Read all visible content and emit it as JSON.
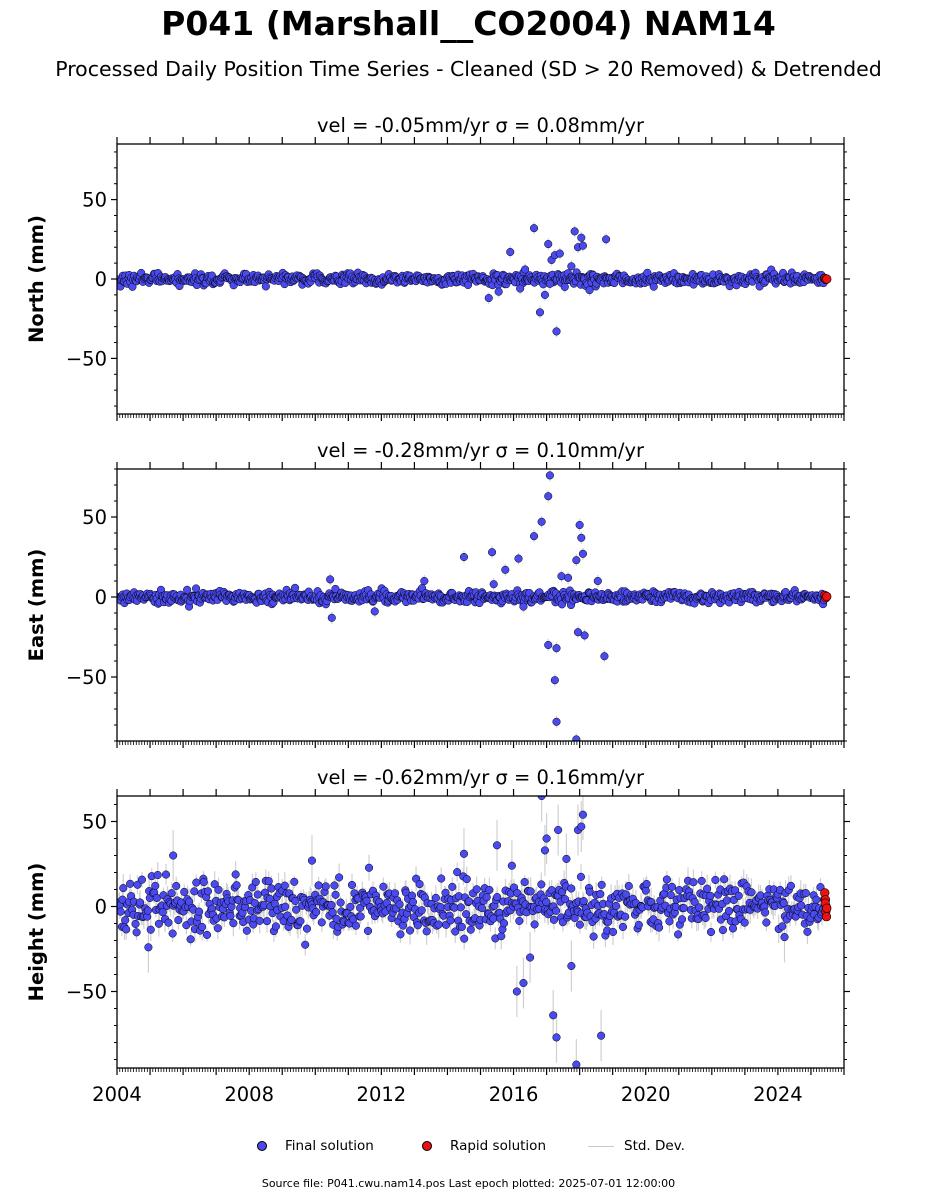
{
  "figure": {
    "title": "P041 (Marshall__CO2004) NAM14",
    "subtitle": "Processed Daily Position Time Series - Cleaned (SD > 20 Removed) & Detrended",
    "source_note": "Source file: P041.cwu.nam14.pos  Last epoch plotted: 2025-07-01 12:00:00"
  },
  "legend": {
    "final_label": "Final solution",
    "rapid_label": "Rapid solution",
    "std_label": "Std. Dev."
  },
  "colors": {
    "final": "#4a4af0",
    "rapid": "#ee1111",
    "std_dev": "#c8c8c8",
    "outline": "#000000"
  },
  "chart_data": [
    {
      "type": "scatter",
      "panel": "north",
      "title": "vel = -0.05mm/yr   σ = 0.08mm/yr",
      "ylabel": "North (mm)",
      "xlim": [
        2004.0,
        2026.0
      ],
      "ylim": [
        -85,
        85
      ],
      "yticks": [
        -50,
        0,
        50
      ],
      "xticks": [
        2004,
        2008,
        2012,
        2016,
        2020,
        2024
      ],
      "noise_mm": 1.8,
      "std_dev_mm": 1.5,
      "outliers": [
        {
          "x": 2015.25,
          "y": -12
        },
        {
          "x": 2015.55,
          "y": -8
        },
        {
          "x": 2015.9,
          "y": 17
        },
        {
          "x": 2016.35,
          "y": 6
        },
        {
          "x": 2016.62,
          "y": 32
        },
        {
          "x": 2016.8,
          "y": -21
        },
        {
          "x": 2016.95,
          "y": -10
        },
        {
          "x": 2017.05,
          "y": 22
        },
        {
          "x": 2017.15,
          "y": 12
        },
        {
          "x": 2017.25,
          "y": 15
        },
        {
          "x": 2017.3,
          "y": -33
        },
        {
          "x": 2017.4,
          "y": 16
        },
        {
          "x": 2017.55,
          "y": -5
        },
        {
          "x": 2017.75,
          "y": 8
        },
        {
          "x": 2017.85,
          "y": 30
        },
        {
          "x": 2017.95,
          "y": 20
        },
        {
          "x": 2018.05,
          "y": 26
        },
        {
          "x": 2018.1,
          "y": 21
        },
        {
          "x": 2018.3,
          "y": -7
        },
        {
          "x": 2018.8,
          "y": 25
        },
        {
          "x": 2017.1,
          "y": -3
        },
        {
          "x": 2016.2,
          "y": -6
        }
      ],
      "rapid_points": [
        {
          "x": 2025.42,
          "y": 0.4
        },
        {
          "x": 2025.45,
          "y": -0.3
        },
        {
          "x": 2025.48,
          "y": 0.0
        }
      ]
    },
    {
      "type": "scatter",
      "panel": "east",
      "title": "vel = -0.28mm/yr   σ = 0.10mm/yr",
      "ylabel": "East (mm)",
      "xlim": [
        2004.0,
        2026.0
      ],
      "ylim": [
        -90,
        80
      ],
      "yticks": [
        -50,
        0,
        50
      ],
      "xticks": [
        2004,
        2008,
        2012,
        2016,
        2020,
        2024
      ],
      "noise_mm": 1.8,
      "std_dev_mm": 1.5,
      "outliers": [
        {
          "x": 2010.45,
          "y": 11
        },
        {
          "x": 2010.5,
          "y": -13
        },
        {
          "x": 2011.8,
          "y": -9
        },
        {
          "x": 2013.3,
          "y": 10
        },
        {
          "x": 2014.5,
          "y": 25
        },
        {
          "x": 2015.35,
          "y": 28
        },
        {
          "x": 2015.4,
          "y": 8
        },
        {
          "x": 2015.75,
          "y": 17
        },
        {
          "x": 2016.15,
          "y": 24
        },
        {
          "x": 2016.62,
          "y": 38
        },
        {
          "x": 2016.85,
          "y": 47
        },
        {
          "x": 2017.05,
          "y": 63
        },
        {
          "x": 2017.1,
          "y": 76
        },
        {
          "x": 2017.05,
          "y": -30
        },
        {
          "x": 2017.3,
          "y": -32
        },
        {
          "x": 2017.25,
          "y": -52
        },
        {
          "x": 2017.3,
          "y": -78
        },
        {
          "x": 2017.45,
          "y": 13
        },
        {
          "x": 2017.65,
          "y": 12
        },
        {
          "x": 2017.9,
          "y": 23
        },
        {
          "x": 2017.95,
          "y": -22
        },
        {
          "x": 2018.0,
          "y": 45
        },
        {
          "x": 2018.05,
          "y": 37
        },
        {
          "x": 2018.1,
          "y": 27
        },
        {
          "x": 2018.15,
          "y": -24
        },
        {
          "x": 2018.55,
          "y": 10
        },
        {
          "x": 2018.75,
          "y": -37
        },
        {
          "x": 2017.9,
          "y": -89
        },
        {
          "x": 2016.3,
          "y": -6
        }
      ],
      "rapid_points": [
        {
          "x": 2025.42,
          "y": 1.0
        },
        {
          "x": 2025.45,
          "y": -0.5
        },
        {
          "x": 2025.48,
          "y": 0.3
        }
      ]
    },
    {
      "type": "scatter",
      "panel": "height",
      "title": "vel = -0.62mm/yr   σ = 0.16mm/yr",
      "ylabel": "Height (mm)",
      "xlim": [
        2004.0,
        2026.0
      ],
      "ylim": [
        -95,
        65
      ],
      "yticks": [
        -50,
        0,
        50
      ],
      "xticks": [
        2004,
        2008,
        2012,
        2016,
        2020,
        2024
      ],
      "noise_mm": 7.5,
      "std_dev_mm": 6,
      "outliers": [
        {
          "x": 2004.95,
          "y": -24
        },
        {
          "x": 2005.7,
          "y": 30
        },
        {
          "x": 2009.9,
          "y": 27
        },
        {
          "x": 2014.5,
          "y": 31
        },
        {
          "x": 2015.5,
          "y": 36
        },
        {
          "x": 2015.95,
          "y": 24
        },
        {
          "x": 2016.1,
          "y": -50
        },
        {
          "x": 2016.3,
          "y": -45
        },
        {
          "x": 2016.85,
          "y": 65
        },
        {
          "x": 2016.95,
          "y": 33
        },
        {
          "x": 2017.2,
          "y": -64
        },
        {
          "x": 2017.3,
          "y": -77
        },
        {
          "x": 2017.35,
          "y": 45
        },
        {
          "x": 2017.9,
          "y": -93
        },
        {
          "x": 2017.95,
          "y": 45
        },
        {
          "x": 2018.05,
          "y": 47
        },
        {
          "x": 2018.1,
          "y": 54
        },
        {
          "x": 2018.65,
          "y": -76
        },
        {
          "x": 2017.6,
          "y": 28
        },
        {
          "x": 2016.5,
          "y": -30
        },
        {
          "x": 2017.75,
          "y": -35
        },
        {
          "x": 2024.2,
          "y": -18
        },
        {
          "x": 2017.0,
          "y": 40
        }
      ],
      "rapid_points": [
        {
          "x": 2025.42,
          "y": 8
        },
        {
          "x": 2025.44,
          "y": 4
        },
        {
          "x": 2025.46,
          "y": 0
        },
        {
          "x": 2025.45,
          "y": -3
        },
        {
          "x": 2025.47,
          "y": -6
        },
        {
          "x": 2025.43,
          "y": 2
        },
        {
          "x": 2025.48,
          "y": -1
        }
      ]
    }
  ]
}
